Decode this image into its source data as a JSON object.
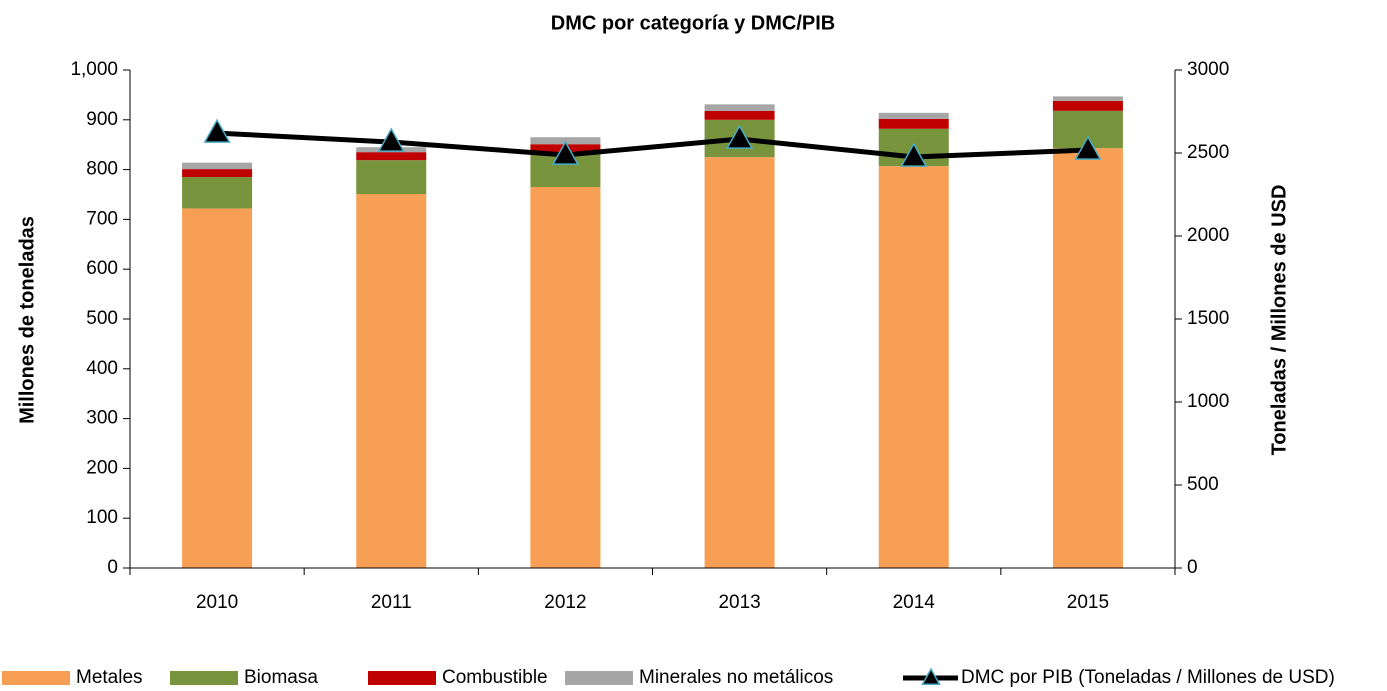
{
  "chart_data": {
    "type": "bar",
    "title": "DMC por categoría  y DMC/PIB",
    "y_label": "Millones de toneladas",
    "y2_label": "Toneladas / Millones de USD",
    "categories": [
      "2010",
      "2011",
      "2012",
      "2013",
      "2014",
      "2015"
    ],
    "stacked": true,
    "series": [
      {
        "name": "Metales",
        "color": "#f79f55",
        "values": [
          722,
          751,
          765,
          825,
          807,
          843
        ]
      },
      {
        "name": "Biomasa",
        "color": "#77933c",
        "values": [
          63,
          68,
          70,
          75,
          75,
          75
        ]
      },
      {
        "name": "Combustible",
        "color": "#c00000",
        "values": [
          16,
          16,
          16,
          18,
          20,
          20
        ]
      },
      {
        "name": "Minerales no metálicos",
        "color": "#a6a6a6",
        "values": [
          13,
          10,
          14,
          13,
          12,
          9
        ]
      },
      {
        "name": "DMC por PIB (Toneladas / Millones de USD)",
        "color": "#000000",
        "marker_edge": "#4bacc6",
        "type": "line",
        "axis": "y2",
        "values": [
          2620,
          2566,
          2488,
          2584,
          2476,
          2518
        ]
      }
    ],
    "ylim": [
      0,
      1000
    ],
    "yticks": [
      0,
      100,
      200,
      300,
      400,
      500,
      600,
      700,
      800,
      900,
      {
        "value": 1000,
        "label": "1,000"
      }
    ],
    "y2lim": [
      0,
      3000
    ],
    "y2ticks": [
      0,
      500,
      1000,
      1500,
      2000,
      2500,
      3000
    ],
    "legend": "bottom"
  }
}
